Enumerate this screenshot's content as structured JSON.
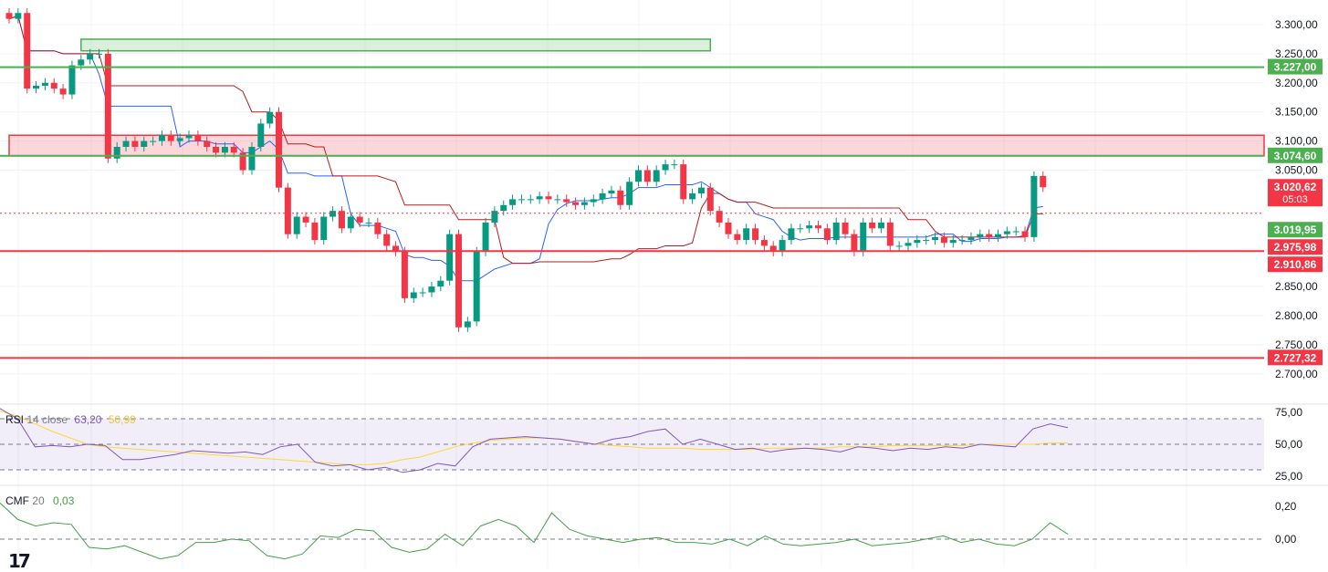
{
  "chart_data": {
    "type": "candlestick",
    "price_axis": {
      "ticks": [
        3300,
        3250,
        3200,
        3150,
        3100,
        3050,
        2850,
        2800,
        2750,
        2700
      ],
      "tick_labels": [
        "3.300,00",
        "3.250,00",
        "3.200,00",
        "3.150,00",
        "3.100,00",
        "3.050,00",
        "2.850,00",
        "2.800,00",
        "2.750,00",
        "2.700,00"
      ],
      "range": [
        2690,
        3330
      ]
    },
    "closes": [
      3310,
      3320,
      3190,
      3195,
      3200,
      3190,
      3180,
      3230,
      3240,
      3250,
      3250,
      3070,
      3090,
      3100,
      3090,
      3100,
      3100,
      3110,
      3100,
      3105,
      3110,
      3100,
      3090,
      3080,
      3090,
      3080,
      3050,
      3090,
      3130,
      3150,
      3020,
      2940,
      2970,
      2960,
      2930,
      2970,
      2980,
      2950,
      2970,
      2960,
      2960,
      2940,
      2920,
      2910,
      2830,
      2840,
      2840,
      2850,
      2860,
      2940,
      2780,
      2790,
      2910,
      2960,
      2980,
      2990,
      3000,
      3000,
      3000,
      3005,
      3000,
      3000,
      2995,
      2990,
      2995,
      3000,
      3010,
      3015,
      2990,
      3030,
      3050,
      3030,
      3050,
      3060,
      3060,
      3000,
      3010,
      3020,
      2980,
      2960,
      2940,
      2930,
      2950,
      2930,
      2920,
      2910,
      2930,
      2950,
      2950,
      2955,
      2950,
      2930,
      2960,
      2940,
      2910,
      2960,
      2950,
      2960,
      2920,
      2920,
      2925,
      2930,
      2930,
      2935,
      2925,
      2930,
      2930,
      2935,
      2940,
      2935,
      2940,
      2945,
      2945,
      2935,
      3040,
      3020.62
    ],
    "levels": [
      {
        "price": 3227.0,
        "label": "3.227,00",
        "color": "#4caf50"
      },
      {
        "price": 3074.6,
        "label": "3.074,60",
        "color": "#4caf50"
      },
      {
        "price": 3020.62,
        "label": "3.020,62",
        "sub": "05:03",
        "color": "#f23645"
      },
      {
        "price": 3019.95,
        "label": "3.019,95",
        "color": "#4caf50"
      },
      {
        "price": 2975.98,
        "label": "2.975,98",
        "color": "#f23645"
      },
      {
        "price": 2910.86,
        "label": "2.910,86",
        "color": "#f23645"
      },
      {
        "price": 2727.32,
        "label": "2.727,32",
        "color": "#f23645"
      }
    ],
    "zones": [
      {
        "from": 3255,
        "to": 3275,
        "color": "#4caf50",
        "start_index": 8,
        "end_index": 78
      },
      {
        "from": 3074.6,
        "to": 3110,
        "color": "#f23645",
        "start_index": 0,
        "end_index": 141
      }
    ],
    "rsi": {
      "title": "RSI",
      "params": "14 close",
      "value": "63,20",
      "ma_value": "50,99",
      "ticks": [
        "75,00",
        "50,00",
        "25,00"
      ],
      "values": [
        78,
        70,
        48,
        49,
        48,
        50,
        49,
        38,
        38,
        40,
        42,
        45,
        44,
        43,
        44,
        42,
        48,
        50,
        36,
        33,
        34,
        30,
        32,
        28,
        30,
        35,
        33,
        48,
        54,
        55,
        56,
        55,
        54,
        52,
        50,
        54,
        56,
        60,
        62,
        50,
        54,
        50,
        46,
        47,
        44,
        46,
        47,
        46,
        44,
        48,
        47,
        45,
        47,
        46,
        48,
        47,
        50,
        49,
        48,
        62,
        66,
        63
      ],
      "ma": [
        76,
        72,
        66,
        60,
        55,
        50,
        48,
        47,
        46,
        45,
        44,
        43,
        42,
        41,
        40,
        39,
        38,
        37,
        36,
        35,
        34,
        34,
        35,
        38,
        40,
        44,
        48,
        51,
        53,
        54,
        55,
        55,
        54,
        52,
        50,
        49,
        48,
        47,
        47,
        47,
        46,
        46,
        46,
        46,
        47,
        47,
        47,
        47,
        48,
        48,
        48,
        49,
        49,
        49,
        49,
        49,
        50,
        50,
        50,
        50,
        51,
        51
      ]
    },
    "cmf": {
      "title": "CMF",
      "params": "20",
      "value": "0,03",
      "ticks": [
        "0,20",
        "0,00"
      ],
      "values": [
        0.22,
        0.12,
        0.08,
        0.1,
        0.09,
        -0.05,
        -0.06,
        -0.04,
        -0.08,
        -0.12,
        -0.1,
        -0.02,
        -0.02,
        0.0,
        -0.01,
        -0.1,
        -0.12,
        -0.09,
        0.02,
        0.01,
        0.06,
        0.05,
        -0.05,
        -0.08,
        -0.06,
        0.03,
        -0.04,
        0.08,
        0.12,
        0.08,
        -0.02,
        0.16,
        0.06,
        0.02,
        0.0,
        -0.02,
        0.0,
        0.01,
        -0.02,
        -0.02,
        -0.03,
        0.0,
        -0.04,
        0.02,
        -0.03,
        -0.04,
        -0.03,
        -0.02,
        0.0,
        -0.04,
        -0.03,
        -0.02,
        0.0,
        0.02,
        -0.02,
        0.0,
        -0.03,
        -0.04,
        0.0,
        0.1,
        0.03
      ]
    }
  },
  "colors": {
    "up": "#089981",
    "down": "#f23645",
    "rsi": "#7e57c2",
    "rsi_ma": "#fdd835",
    "cmf": "#43a047",
    "tenkan": "#2962ff",
    "kijun": "#b71c1c"
  }
}
